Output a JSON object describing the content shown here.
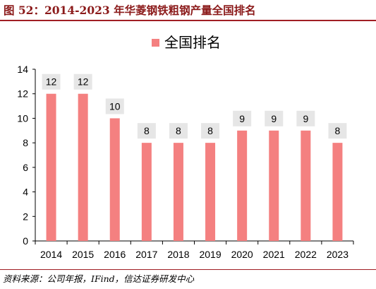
{
  "figure": {
    "title": "图 52：2014-2023 年华菱钢铁粗钢产量全国排名",
    "source": "资料来源：公司年报，IFind，信达证券研发中心"
  },
  "colors": {
    "bar": "#f48080",
    "label_box": "#e6e6e6",
    "title": "#8b1a1a",
    "rule": "#a01e24"
  },
  "chart_data": {
    "type": "bar",
    "categories": [
      "2014",
      "2015",
      "2016",
      "2017",
      "2018",
      "2019",
      "2020",
      "2021",
      "2022",
      "2023"
    ],
    "series": [
      {
        "name": "全国排名",
        "values": [
          12,
          12,
          10,
          8,
          8,
          8,
          9,
          9,
          9,
          8
        ]
      }
    ],
    "ylim": [
      0,
      14
    ],
    "yticks": [
      0,
      2,
      4,
      6,
      8,
      10,
      12,
      14
    ],
    "data_labels": true,
    "legend": "top-center",
    "grid": false
  }
}
